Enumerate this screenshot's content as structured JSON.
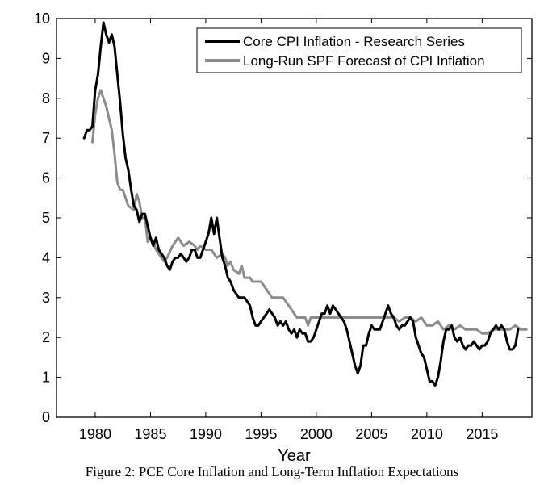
{
  "caption": "Figure 2: PCE Core Inflation and Long-Term Inflation Expectations",
  "chart_data": {
    "type": "line",
    "title": "",
    "xlabel": "Year",
    "ylabel": "",
    "xlim": [
      1976.5,
      2019.5
    ],
    "ylim": [
      0,
      10
    ],
    "xticks": [
      1980,
      1985,
      1990,
      1995,
      2000,
      2005,
      2010,
      2015
    ],
    "yticks": [
      0,
      1,
      2,
      3,
      4,
      5,
      6,
      7,
      8,
      9,
      10
    ],
    "grid": false,
    "legend_position": "top-right",
    "series": [
      {
        "name": "Core CPI Inflation - Research Series",
        "color": "#000000",
        "points": [
          [
            1979.0,
            7.0
          ],
          [
            1979.25,
            7.2
          ],
          [
            1979.5,
            7.2
          ],
          [
            1979.75,
            7.3
          ],
          [
            1980.0,
            8.2
          ],
          [
            1980.25,
            8.6
          ],
          [
            1980.5,
            9.3
          ],
          [
            1980.75,
            9.9
          ],
          [
            1981.0,
            9.6
          ],
          [
            1981.25,
            9.4
          ],
          [
            1981.5,
            9.6
          ],
          [
            1981.75,
            9.3
          ],
          [
            1982.0,
            8.6
          ],
          [
            1982.25,
            7.9
          ],
          [
            1982.5,
            7.1
          ],
          [
            1982.75,
            6.5
          ],
          [
            1983.0,
            6.2
          ],
          [
            1983.25,
            5.7
          ],
          [
            1983.5,
            5.3
          ],
          [
            1983.75,
            5.2
          ],
          [
            1984.0,
            4.9
          ],
          [
            1984.25,
            5.1
          ],
          [
            1984.5,
            5.1
          ],
          [
            1984.75,
            4.8
          ],
          [
            1985.0,
            4.5
          ],
          [
            1985.25,
            4.3
          ],
          [
            1985.5,
            4.5
          ],
          [
            1985.75,
            4.2
          ],
          [
            1986.0,
            4.1
          ],
          [
            1986.25,
            4.0
          ],
          [
            1986.5,
            3.8
          ],
          [
            1986.75,
            3.7
          ],
          [
            1987.0,
            3.9
          ],
          [
            1987.25,
            4.0
          ],
          [
            1987.5,
            4.0
          ],
          [
            1987.75,
            4.1
          ],
          [
            1988.0,
            4.0
          ],
          [
            1988.25,
            3.9
          ],
          [
            1988.5,
            4.0
          ],
          [
            1988.75,
            4.2
          ],
          [
            1989.0,
            4.2
          ],
          [
            1989.25,
            4.0
          ],
          [
            1989.5,
            4.0
          ],
          [
            1989.75,
            4.2
          ],
          [
            1990.0,
            4.4
          ],
          [
            1990.25,
            4.6
          ],
          [
            1990.5,
            5.0
          ],
          [
            1990.75,
            4.6
          ],
          [
            1991.0,
            5.0
          ],
          [
            1991.25,
            4.5
          ],
          [
            1991.5,
            4.0
          ],
          [
            1991.75,
            3.8
          ],
          [
            1992.0,
            3.5
          ],
          [
            1992.25,
            3.4
          ],
          [
            1992.5,
            3.2
          ],
          [
            1992.75,
            3.1
          ],
          [
            1993.0,
            3.0
          ],
          [
            1993.25,
            3.0
          ],
          [
            1993.5,
            3.0
          ],
          [
            1993.75,
            2.9
          ],
          [
            1994.0,
            2.8
          ],
          [
            1994.25,
            2.5
          ],
          [
            1994.5,
            2.3
          ],
          [
            1994.75,
            2.3
          ],
          [
            1995.0,
            2.4
          ],
          [
            1995.25,
            2.5
          ],
          [
            1995.5,
            2.6
          ],
          [
            1995.75,
            2.7
          ],
          [
            1996.0,
            2.6
          ],
          [
            1996.25,
            2.5
          ],
          [
            1996.5,
            2.3
          ],
          [
            1996.75,
            2.4
          ],
          [
            1997.0,
            2.3
          ],
          [
            1997.25,
            2.4
          ],
          [
            1997.5,
            2.2
          ],
          [
            1997.75,
            2.1
          ],
          [
            1998.0,
            2.2
          ],
          [
            1998.25,
            2.0
          ],
          [
            1998.5,
            2.2
          ],
          [
            1998.75,
            2.1
          ],
          [
            1999.0,
            2.1
          ],
          [
            1999.25,
            1.9
          ],
          [
            1999.5,
            1.9
          ],
          [
            1999.75,
            2.0
          ],
          [
            2000.0,
            2.2
          ],
          [
            2000.25,
            2.4
          ],
          [
            2000.5,
            2.6
          ],
          [
            2000.75,
            2.6
          ],
          [
            2001.0,
            2.8
          ],
          [
            2001.25,
            2.6
          ],
          [
            2001.5,
            2.8
          ],
          [
            2001.75,
            2.7
          ],
          [
            2002.0,
            2.6
          ],
          [
            2002.25,
            2.5
          ],
          [
            2002.5,
            2.4
          ],
          [
            2002.75,
            2.2
          ],
          [
            2003.0,
            1.9
          ],
          [
            2003.25,
            1.6
          ],
          [
            2003.5,
            1.3
          ],
          [
            2003.75,
            1.1
          ],
          [
            2004.0,
            1.3
          ],
          [
            2004.25,
            1.8
          ],
          [
            2004.5,
            1.8
          ],
          [
            2004.75,
            2.1
          ],
          [
            2005.0,
            2.3
          ],
          [
            2005.25,
            2.2
          ],
          [
            2005.5,
            2.2
          ],
          [
            2005.75,
            2.2
          ],
          [
            2006.0,
            2.4
          ],
          [
            2006.25,
            2.6
          ],
          [
            2006.5,
            2.8
          ],
          [
            2006.75,
            2.6
          ],
          [
            2007.0,
            2.5
          ],
          [
            2007.25,
            2.3
          ],
          [
            2007.5,
            2.2
          ],
          [
            2007.75,
            2.3
          ],
          [
            2008.0,
            2.3
          ],
          [
            2008.25,
            2.4
          ],
          [
            2008.5,
            2.5
          ],
          [
            2008.75,
            2.4
          ],
          [
            2009.0,
            2.0
          ],
          [
            2009.25,
            1.8
          ],
          [
            2009.5,
            1.6
          ],
          [
            2009.75,
            1.5
          ],
          [
            2010.0,
            1.2
          ],
          [
            2010.25,
            0.9
          ],
          [
            2010.5,
            0.9
          ],
          [
            2010.75,
            0.8
          ],
          [
            2011.0,
            1.0
          ],
          [
            2011.25,
            1.4
          ],
          [
            2011.5,
            1.9
          ],
          [
            2011.75,
            2.2
          ],
          [
            2012.0,
            2.2
          ],
          [
            2012.25,
            2.3
          ],
          [
            2012.5,
            2.0
          ],
          [
            2012.75,
            1.9
          ],
          [
            2013.0,
            2.0
          ],
          [
            2013.25,
            1.8
          ],
          [
            2013.5,
            1.7
          ],
          [
            2013.75,
            1.8
          ],
          [
            2014.0,
            1.8
          ],
          [
            2014.25,
            1.9
          ],
          [
            2014.5,
            1.8
          ],
          [
            2014.75,
            1.7
          ],
          [
            2015.0,
            1.8
          ],
          [
            2015.25,
            1.8
          ],
          [
            2015.5,
            1.9
          ],
          [
            2015.75,
            2.1
          ],
          [
            2016.0,
            2.2
          ],
          [
            2016.25,
            2.3
          ],
          [
            2016.5,
            2.2
          ],
          [
            2016.75,
            2.3
          ],
          [
            2017.0,
            2.2
          ],
          [
            2017.25,
            1.9
          ],
          [
            2017.5,
            1.7
          ],
          [
            2017.75,
            1.7
          ],
          [
            2018.0,
            1.8
          ],
          [
            2018.25,
            2.2
          ]
        ]
      },
      {
        "name": "Long-Run SPF Forecast of CPI Inflation",
        "color": "#8c8c8c",
        "points": [
          [
            1979.75,
            6.9
          ],
          [
            1980.0,
            7.6
          ],
          [
            1980.25,
            8.0
          ],
          [
            1980.5,
            8.2
          ],
          [
            1980.75,
            8.0
          ],
          [
            1981.0,
            7.8
          ],
          [
            1981.5,
            7.2
          ],
          [
            1981.75,
            6.6
          ],
          [
            1982.0,
            5.9
          ],
          [
            1982.25,
            5.7
          ],
          [
            1982.5,
            5.7
          ],
          [
            1982.75,
            5.5
          ],
          [
            1983.0,
            5.3
          ],
          [
            1983.5,
            5.2
          ],
          [
            1983.75,
            5.6
          ],
          [
            1984.0,
            5.4
          ],
          [
            1984.25,
            5.0
          ],
          [
            1984.5,
            5.0
          ],
          [
            1984.75,
            4.4
          ],
          [
            1985.0,
            4.5
          ],
          [
            1985.25,
            4.4
          ],
          [
            1985.5,
            4.2
          ],
          [
            1986.0,
            4.0
          ],
          [
            1986.25,
            3.9
          ],
          [
            1986.5,
            4.0
          ],
          [
            1987.0,
            4.3
          ],
          [
            1987.5,
            4.5
          ],
          [
            1988.0,
            4.3
          ],
          [
            1988.5,
            4.4
          ],
          [
            1989.0,
            4.3
          ],
          [
            1989.25,
            4.2
          ],
          [
            1989.5,
            4.3
          ],
          [
            1990.0,
            4.2
          ],
          [
            1990.5,
            4.2
          ],
          [
            1991.0,
            4.0
          ],
          [
            1991.5,
            4.1
          ],
          [
            1991.75,
            4.0
          ],
          [
            1992.0,
            3.8
          ],
          [
            1992.25,
            3.9
          ],
          [
            1992.5,
            3.7
          ],
          [
            1993.0,
            3.6
          ],
          [
            1993.25,
            3.8
          ],
          [
            1993.5,
            3.5
          ],
          [
            1994.0,
            3.5
          ],
          [
            1994.25,
            3.4
          ],
          [
            1995.0,
            3.4
          ],
          [
            1995.5,
            3.2
          ],
          [
            1995.75,
            3.1
          ],
          [
            1996.0,
            3.0
          ],
          [
            1996.5,
            3.0
          ],
          [
            1997.0,
            3.0
          ],
          [
            1997.5,
            2.8
          ],
          [
            1998.0,
            2.6
          ],
          [
            1998.25,
            2.5
          ],
          [
            1998.5,
            2.5
          ],
          [
            1999.0,
            2.5
          ],
          [
            1999.25,
            2.3
          ],
          [
            1999.5,
            2.5
          ],
          [
            2000.0,
            2.5
          ],
          [
            2001.0,
            2.5
          ],
          [
            2002.0,
            2.5
          ],
          [
            2003.0,
            2.5
          ],
          [
            2004.0,
            2.5
          ],
          [
            2005.0,
            2.5
          ],
          [
            2006.0,
            2.5
          ],
          [
            2007.0,
            2.5
          ],
          [
            2007.5,
            2.4
          ],
          [
            2008.0,
            2.5
          ],
          [
            2008.5,
            2.5
          ],
          [
            2009.0,
            2.4
          ],
          [
            2009.5,
            2.5
          ],
          [
            2010.0,
            2.3
          ],
          [
            2010.5,
            2.3
          ],
          [
            2011.0,
            2.4
          ],
          [
            2011.5,
            2.2
          ],
          [
            2012.0,
            2.3
          ],
          [
            2012.5,
            2.2
          ],
          [
            2013.0,
            2.3
          ],
          [
            2013.5,
            2.2
          ],
          [
            2014.0,
            2.2
          ],
          [
            2014.5,
            2.2
          ],
          [
            2015.0,
            2.1
          ],
          [
            2015.5,
            2.1
          ],
          [
            2016.0,
            2.2
          ],
          [
            2016.5,
            2.2
          ],
          [
            2017.0,
            2.2
          ],
          [
            2017.5,
            2.2
          ],
          [
            2018.0,
            2.3
          ],
          [
            2018.5,
            2.2
          ],
          [
            2019.0,
            2.2
          ]
        ]
      }
    ]
  }
}
